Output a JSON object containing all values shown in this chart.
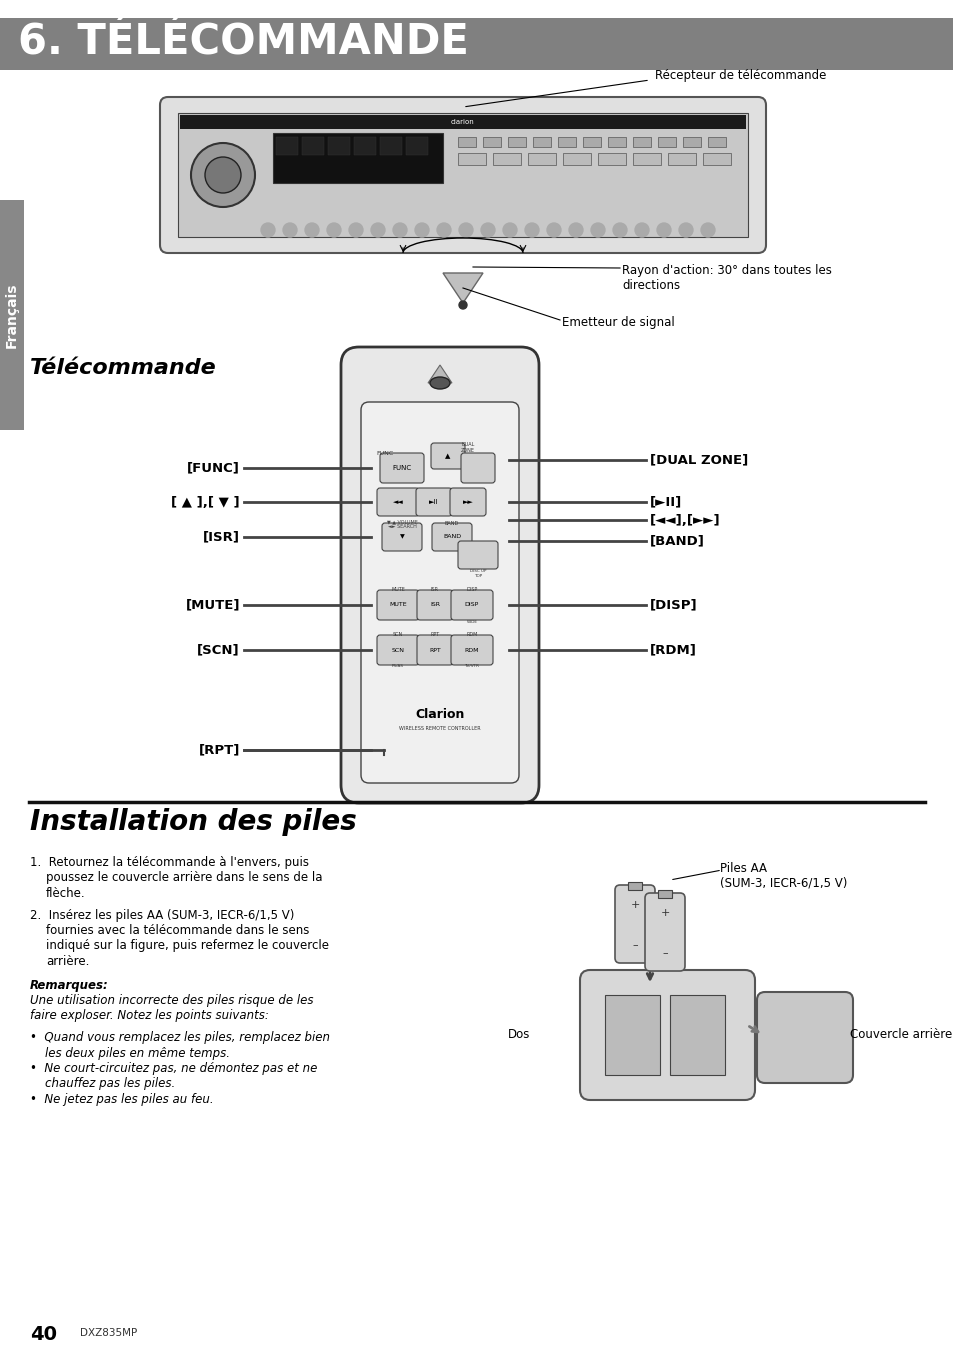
{
  "page_bg": "#ffffff",
  "header_bg": "#808080",
  "header_text": "6. TÉLÉCOMMANDE",
  "header_text_color": "#ffffff",
  "sidebar_bg": "#888888",
  "sidebar_text": "Français",
  "section1_title": "Télécommande",
  "section2_title": "Installation des piles",
  "page_number": "40",
  "model": "DXZ835MP",
  "receptor_label": "Récepteur de télécommande",
  "rayon_label": "Rayon d'action: 30° dans toutes les\ndirections",
  "emetteur_label": "Emetteur de signal",
  "remote_left_labels": [
    "[FUNC]",
    "[ ▲ ],[ ▼ ]",
    "[ISR]",
    "[MUTE]",
    "[SCN]",
    "[RPT]"
  ],
  "remote_right_labels": [
    "[DUAL ZONE]",
    "[►II]",
    "[◄◄],[►►]",
    "[BAND]",
    "[DISP]",
    "[RDM]"
  ],
  "body_text_1a": "1.  Retournez la télécommande à l'envers, puis",
  "body_text_1b": "     poussez le couvercle arrière dans le sens de la",
  "body_text_1c": "     flèche.",
  "body_text_2a": "2.  Insérez les piles AA (SUM-3, IECR-6/1,5 V)",
  "body_text_2b": "     fournies avec la télécommande dans le sens",
  "body_text_2c": "     indiqué sur la figure, puis refermez le couvercle",
  "body_text_2d": "     arrière.",
  "remarques_title": "Remarques:",
  "rem_line1": "Une utilisation incorrecte des piles risque de les",
  "rem_line2": "faire exploser. Notez les points suivants:",
  "bullet1a": "•  Quand vous remplacez les piles, remplacez bien",
  "bullet1b": "    les deux piles en même temps.",
  "bullet2a": "•  Ne court-circuitez pas, ne démontez pas et ne",
  "bullet2b": "    chauffez pas les piles.",
  "bullet3": "•  Ne jetez pas les piles au feu.",
  "piles_label": "Piles AA\n(SUM-3, IECR-6/1,5 V)",
  "dos_label": "Dos",
  "couvercle_label": "Couvercle arrière"
}
